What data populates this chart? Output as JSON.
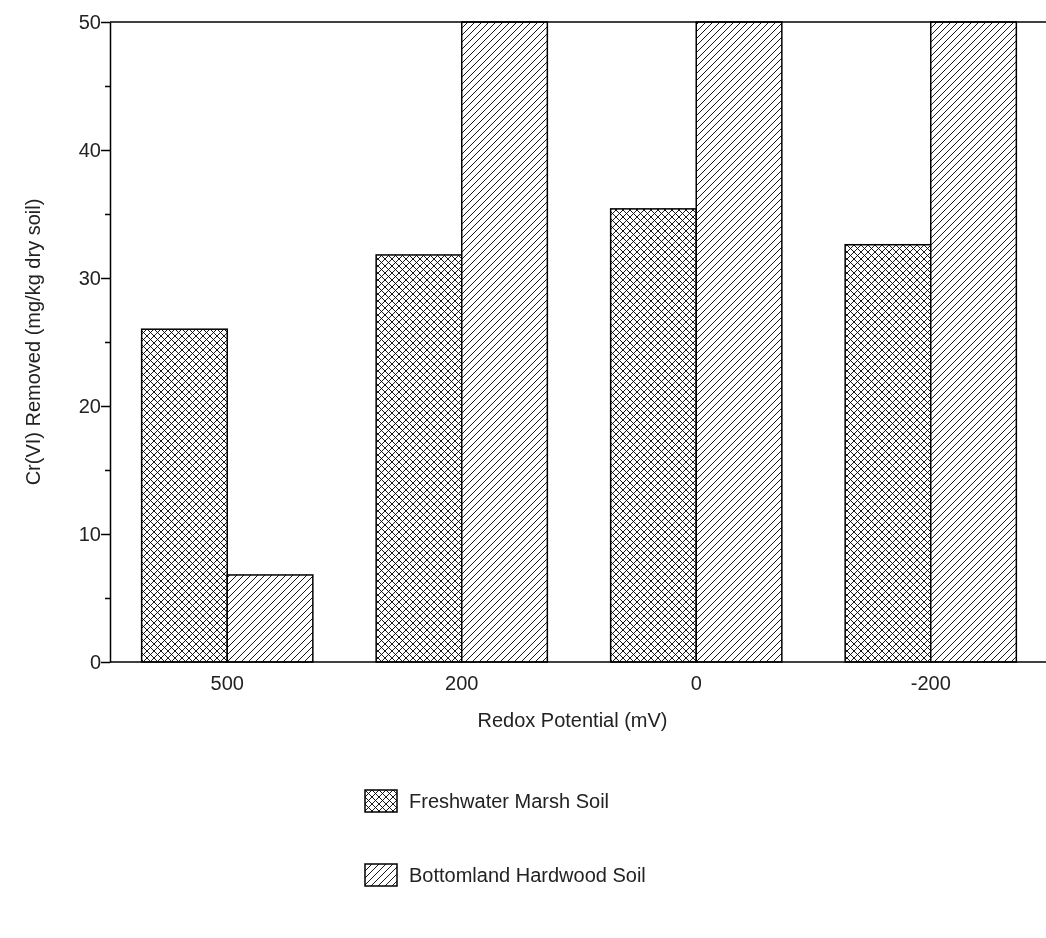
{
  "chart_data": {
    "type": "bar",
    "xlabel": "Redox Potential (mV)",
    "ylabel": "Cr(VI) Removed (mg/kg dry soil)",
    "categories": [
      "500",
      "200",
      "0",
      "-200"
    ],
    "series": [
      {
        "name": "Freshwater Marsh Soil",
        "color": "#000000",
        "values": [
          26,
          31.8,
          35.4,
          32.6
        ]
      },
      {
        "name": "Bottomland Hardwood Soil",
        "color": "#000000",
        "values": [
          6.8,
          50,
          50,
          50
        ]
      }
    ],
    "ylim": [
      0,
      50
    ],
    "yticks": [
      0,
      {
        "value": 5,
        "label": null
      },
      10,
      {
        "value": 15,
        "label": null
      },
      20,
      {
        "value": 25,
        "label": null
      },
      30,
      {
        "value": 35,
        "label": null
      },
      40,
      {
        "value": 45,
        "label": null
      },
      50
    ],
    "grid": false,
    "legend": "bottom"
  }
}
